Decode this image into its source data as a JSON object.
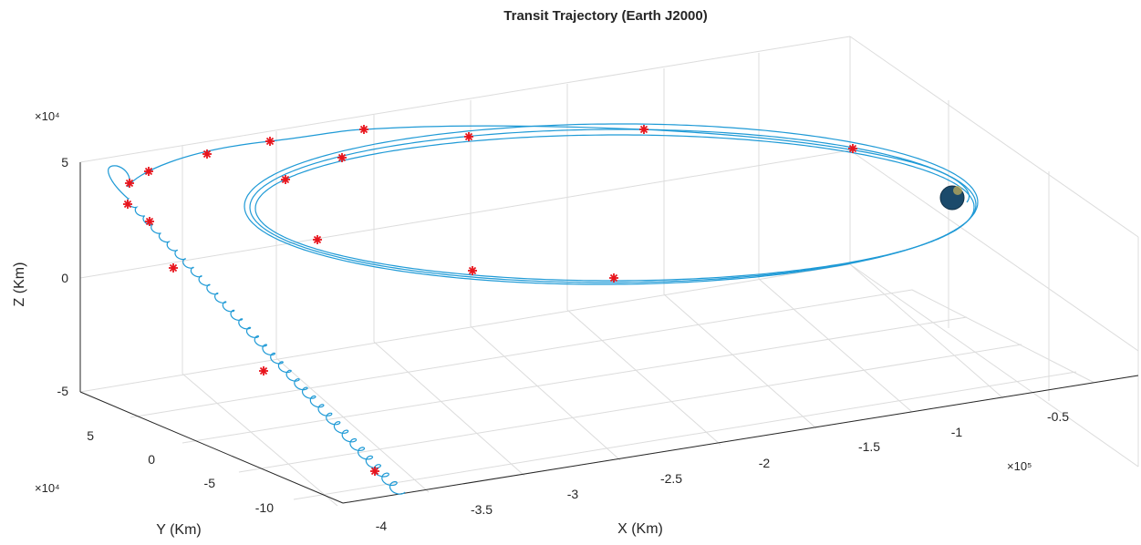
{
  "chart_data": {
    "type": "line",
    "dimensions": "3d",
    "title": "Transit Trajectory (Earth J2000)",
    "xlabel": "X (Km)",
    "ylabel": "Y (Km)",
    "zlabel": "Z (Km)",
    "x_exponent": "×10⁵",
    "y_exponent": "×10⁴",
    "z_exponent": "×10⁴",
    "x_ticks": [
      "-4",
      "-3.5",
      "-3",
      "-2.5",
      "-2",
      "-1.5",
      "-1",
      "-0.5"
    ],
    "y_ticks": [
      "5",
      "0",
      "-5",
      "-10"
    ],
    "z_ticks": [
      "5",
      "0",
      "-5"
    ],
    "xlim": [
      -4.2,
      0
    ],
    "ylim": [
      -13,
      8
    ],
    "zlim": [
      -5,
      5
    ],
    "grid": true,
    "legend": "none",
    "series": [
      {
        "style": "line",
        "color": "#1f9ad6",
        "description": "spiral climb from low orbit then transfer into large elliptical orbit (3 loops)"
      },
      {
        "style": "markers",
        "marker": "asterisk",
        "color": "#e8141c"
      }
    ],
    "central_body": {
      "color": "#1b4a6b"
    }
  }
}
